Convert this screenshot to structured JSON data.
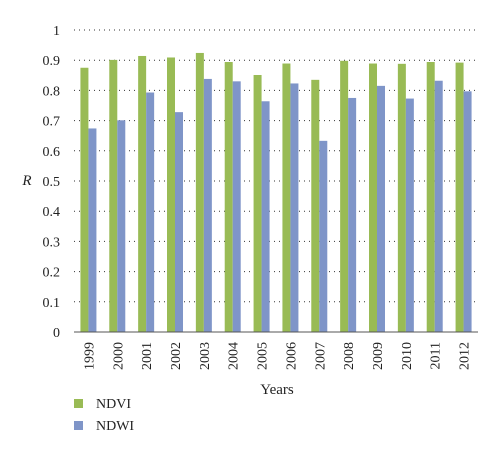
{
  "chart_data": {
    "type": "bar",
    "categories": [
      "1999",
      "2000",
      "2001",
      "2002",
      "2003",
      "2004",
      "2005",
      "2006",
      "2007",
      "2008",
      "2009",
      "2010",
      "2011",
      "2012"
    ],
    "series": [
      {
        "name": "NDVI",
        "color": "#99bb55",
        "values": [
          0.875,
          0.901,
          0.914,
          0.909,
          0.924,
          0.894,
          0.851,
          0.889,
          0.835,
          0.898,
          0.889,
          0.888,
          0.894,
          0.892
        ]
      },
      {
        "name": "NDWI",
        "color": "#7f95c8",
        "values": [
          0.674,
          0.701,
          0.793,
          0.728,
          0.838,
          0.83,
          0.764,
          0.823,
          0.633,
          0.775,
          0.815,
          0.773,
          0.832,
          0.797
        ]
      }
    ],
    "xlabel": "Years",
    "ylabel": "R",
    "ylim": [
      0,
      1
    ],
    "yticks": [
      "0",
      "0.1",
      "0.2",
      "0.3",
      "0.4",
      "0.5",
      "0.6",
      "0.7",
      "0.8",
      "0.9",
      "1"
    ],
    "grid": true,
    "legend_position": "bottom-left"
  }
}
